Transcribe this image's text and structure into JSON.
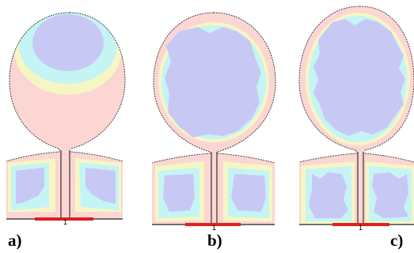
{
  "figure": {
    "panels": [
      {
        "id": "a",
        "label": "a)",
        "source_mark": "1",
        "field_pattern": "stratified-top"
      },
      {
        "id": "b",
        "label": "b)",
        "source_mark": "1",
        "field_pattern": "uniform-core"
      },
      {
        "id": "c",
        "label": "c)",
        "source_mark": "1",
        "field_pattern": "uniform-core-wavy"
      }
    ],
    "colors": {
      "level_0": "#c8c8f5",
      "level_1": "#c5f4f4",
      "level_2": "#f6f6c4",
      "level_3": "#fbd6d2",
      "source": "#e02020",
      "outline": "#333333"
    }
  }
}
